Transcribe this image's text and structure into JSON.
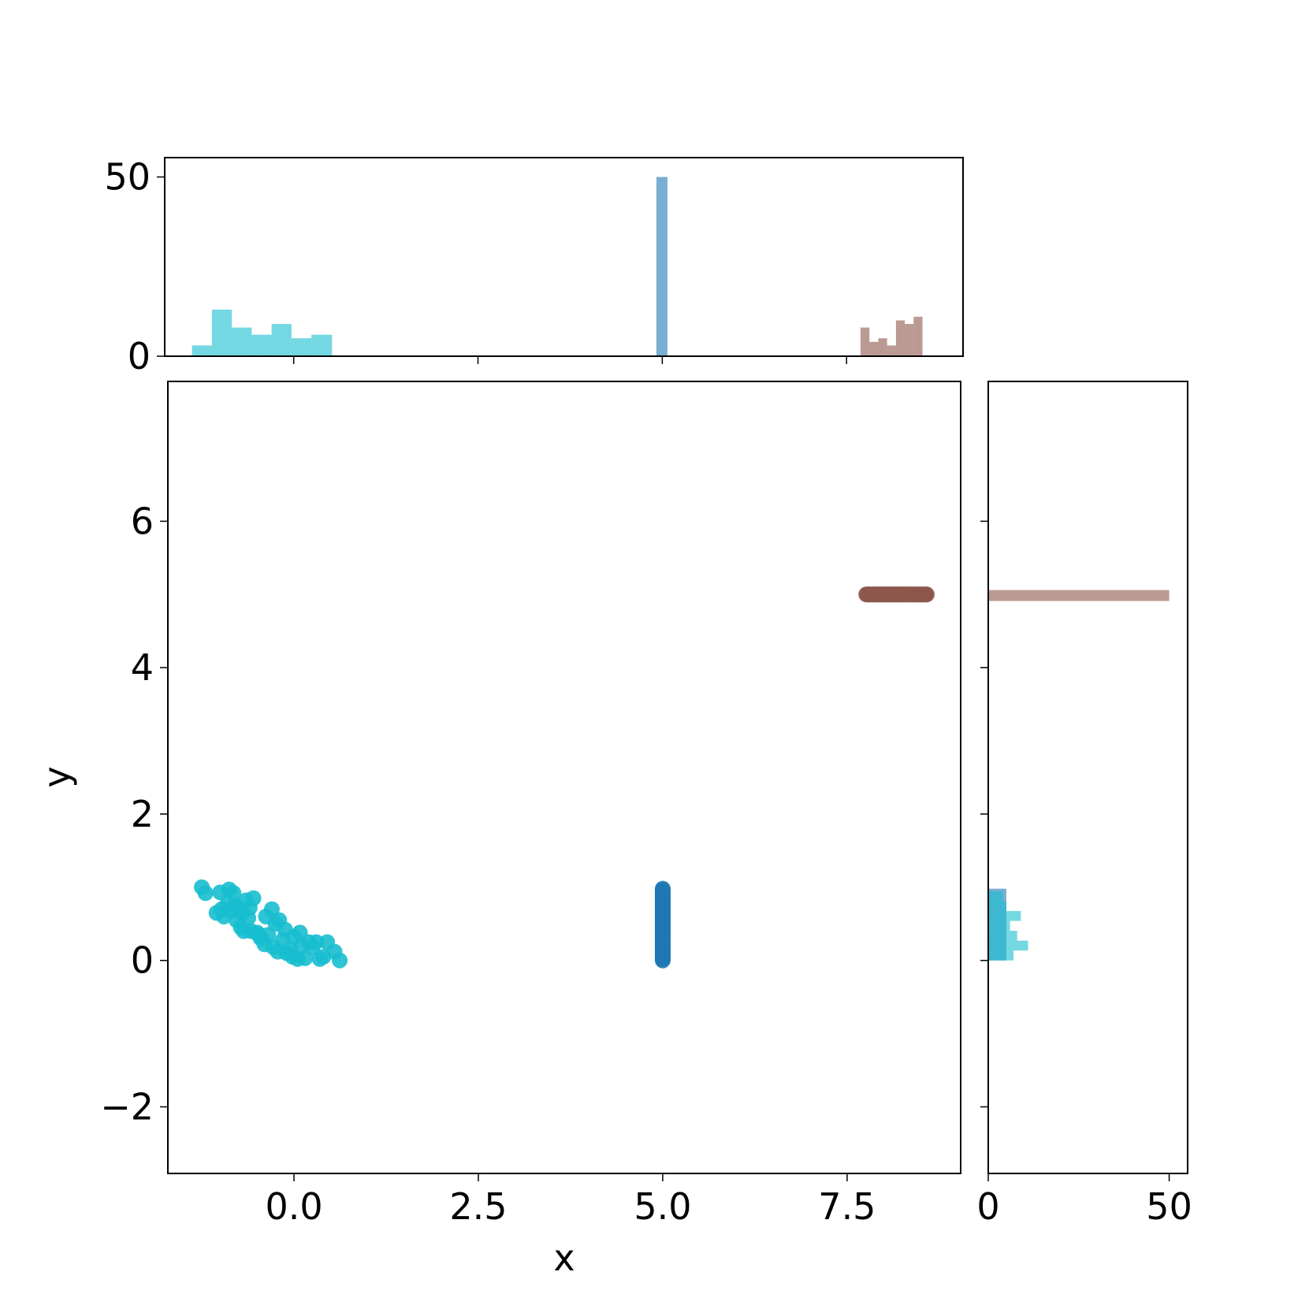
{
  "chart_data": [
    {
      "type": "scatter",
      "xlabel": "x",
      "ylabel": "y",
      "xlim": [
        -1.71,
        9.04
      ],
      "ylim": [
        -2.91,
        7.91
      ],
      "xticks": [
        {
          "value": 0,
          "label": "0.0"
        },
        {
          "value": 2.5,
          "label": "2.5"
        },
        {
          "value": 5,
          "label": "5.0"
        },
        {
          "value": 7.5,
          "label": "7.5"
        }
      ],
      "yticks": [
        {
          "value": -2,
          "label": "−2"
        },
        0,
        2,
        4,
        6
      ],
      "series": [
        {
          "color": "#1f77b4",
          "x": [
            5,
            5,
            5,
            5,
            5,
            5,
            5,
            5,
            5,
            5,
            5,
            5,
            5,
            5,
            5,
            5,
            5,
            5,
            5,
            5,
            5,
            5,
            5,
            5,
            5,
            5,
            5,
            5,
            5,
            5,
            5,
            5,
            5,
            5,
            5,
            5,
            5,
            5,
            5,
            5,
            5,
            5,
            5,
            5,
            5,
            5,
            5,
            5,
            5,
            5
          ],
          "y": [
            0,
            0.02,
            0.04,
            0.06,
            0.08,
            0.1,
            0.12,
            0.14,
            0.16,
            0.18,
            0.2,
            0.22,
            0.24,
            0.26,
            0.28,
            0.3,
            0.32,
            0.34,
            0.36,
            0.38,
            0.4,
            0.42,
            0.44,
            0.46,
            0.48,
            0.5,
            0.52,
            0.54,
            0.56,
            0.58,
            0.6,
            0.62,
            0.64,
            0.66,
            0.68,
            0.7,
            0.72,
            0.74,
            0.76,
            0.78,
            0.8,
            0.82,
            0.84,
            0.86,
            0.88,
            0.9,
            0.92,
            0.94,
            0.96,
            0.98
          ]
        },
        {
          "color": "#8c564b",
          "x": [
            7.76,
            7.78,
            7.8,
            7.81,
            7.83,
            7.85,
            7.86,
            7.88,
            7.9,
            7.91,
            7.93,
            7.95,
            7.96,
            7.98,
            8.0,
            8.01,
            8.03,
            8.05,
            8.06,
            8.08,
            8.1,
            8.11,
            8.13,
            8.15,
            8.16,
            8.18,
            8.2,
            8.21,
            8.23,
            8.25,
            8.26,
            8.28,
            8.3,
            8.31,
            8.33,
            8.35,
            8.36,
            8.38,
            8.4,
            8.41,
            8.43,
            8.45,
            8.46,
            8.48,
            8.5,
            8.51,
            8.53,
            8.55,
            8.56,
            8.58
          ],
          "y": [
            5,
            5,
            5,
            5,
            5,
            5,
            5,
            5,
            5,
            5,
            5,
            5,
            5,
            5,
            5,
            5,
            5,
            5,
            5,
            5,
            5,
            5,
            5,
            5,
            5,
            5,
            5,
            5,
            5,
            5,
            5,
            5,
            5,
            5,
            5,
            5,
            5,
            5,
            5,
            5,
            5,
            5,
            5,
            5,
            5,
            5,
            5,
            5,
            5,
            5
          ]
        },
        {
          "color": "#17becf",
          "x": [
            -1.25,
            -1.2,
            -1.05,
            -1.0,
            -0.98,
            -0.95,
            -0.9,
            -0.88,
            -0.85,
            -0.82,
            -0.8,
            -0.78,
            -0.75,
            -0.72,
            -0.7,
            -0.68,
            -0.65,
            -0.62,
            -0.6,
            -0.58,
            -0.55,
            -0.5,
            -0.48,
            -0.45,
            -0.4,
            -0.38,
            -0.35,
            -0.3,
            -0.28,
            -0.25,
            -0.22,
            -0.2,
            -0.15,
            -0.12,
            -0.1,
            -0.05,
            -0.02,
            0.0,
            0.05,
            0.08,
            0.1,
            0.15,
            0.2,
            0.25,
            0.3,
            0.35,
            0.4,
            0.45,
            0.55,
            0.62
          ],
          "y": [
            1.0,
            0.92,
            0.65,
            0.93,
            0.7,
            0.6,
            0.78,
            0.97,
            0.68,
            0.92,
            0.75,
            0.55,
            0.72,
            0.45,
            0.65,
            0.4,
            0.82,
            0.58,
            0.72,
            0.4,
            0.85,
            0.38,
            0.35,
            0.3,
            0.22,
            0.6,
            0.35,
            0.7,
            0.18,
            0.5,
            0.12,
            0.55,
            0.28,
            0.42,
            0.1,
            0.15,
            0.05,
            0.32,
            0.02,
            0.38,
            0.2,
            0.03,
            0.25,
            0.18,
            0.25,
            0.02,
            0.05,
            0.25,
            0.12,
            0.0
          ]
        }
      ]
    },
    {
      "type": "histogram",
      "orientation": "vertical",
      "xlim": [
        -1.75,
        9.08
      ],
      "ylim": [
        0,
        55.4
      ],
      "xticks": [
        0,
        2.5,
        5,
        7.5
      ],
      "yticks": [
        0,
        50
      ],
      "series": [
        {
          "color": "#1f77b4",
          "bins": [
            4.92,
            5.07
          ],
          "values": [
            50
          ]
        },
        {
          "color": "#8c564b",
          "bins": [
            7.69,
            7.81,
            7.93,
            8.05,
            8.17,
            8.29,
            8.41,
            8.53
          ],
          "values": [
            8,
            4,
            5,
            3,
            10,
            9,
            11
          ]
        },
        {
          "color": "#17becf",
          "bins": [
            -1.38,
            -1.11,
            -0.84,
            -0.57,
            -0.3,
            -0.03,
            0.24,
            0.52
          ],
          "values": [
            3,
            13,
            8,
            6,
            9,
            5,
            6
          ]
        }
      ]
    },
    {
      "type": "histogram",
      "orientation": "horizontal",
      "xlim": [
        0,
        55.1
      ],
      "ylim": [
        -2.91,
        7.91
      ],
      "xticks": [
        0,
        50
      ],
      "yticks": [
        -2,
        0,
        2,
        4,
        6
      ],
      "series": [
        {
          "color": "#1f77b4",
          "bins": [
            0,
            0.098,
            0.196,
            0.294,
            0.392,
            0.49,
            0.588,
            0.686,
            0.784,
            0.882,
            0.98
          ],
          "values": [
            5,
            5,
            5,
            5,
            5,
            5,
            5,
            5,
            5,
            5
          ]
        },
        {
          "color": "#8c564b",
          "bins": [
            4.91,
            5.06
          ],
          "values": [
            50
          ]
        },
        {
          "color": "#17becf",
          "bins": [
            0,
            0.135,
            0.27,
            0.405,
            0.54,
            0.675,
            0.81,
            0.945
          ],
          "values": [
            7,
            11,
            8,
            6,
            9,
            5,
            4
          ]
        }
      ]
    }
  ]
}
